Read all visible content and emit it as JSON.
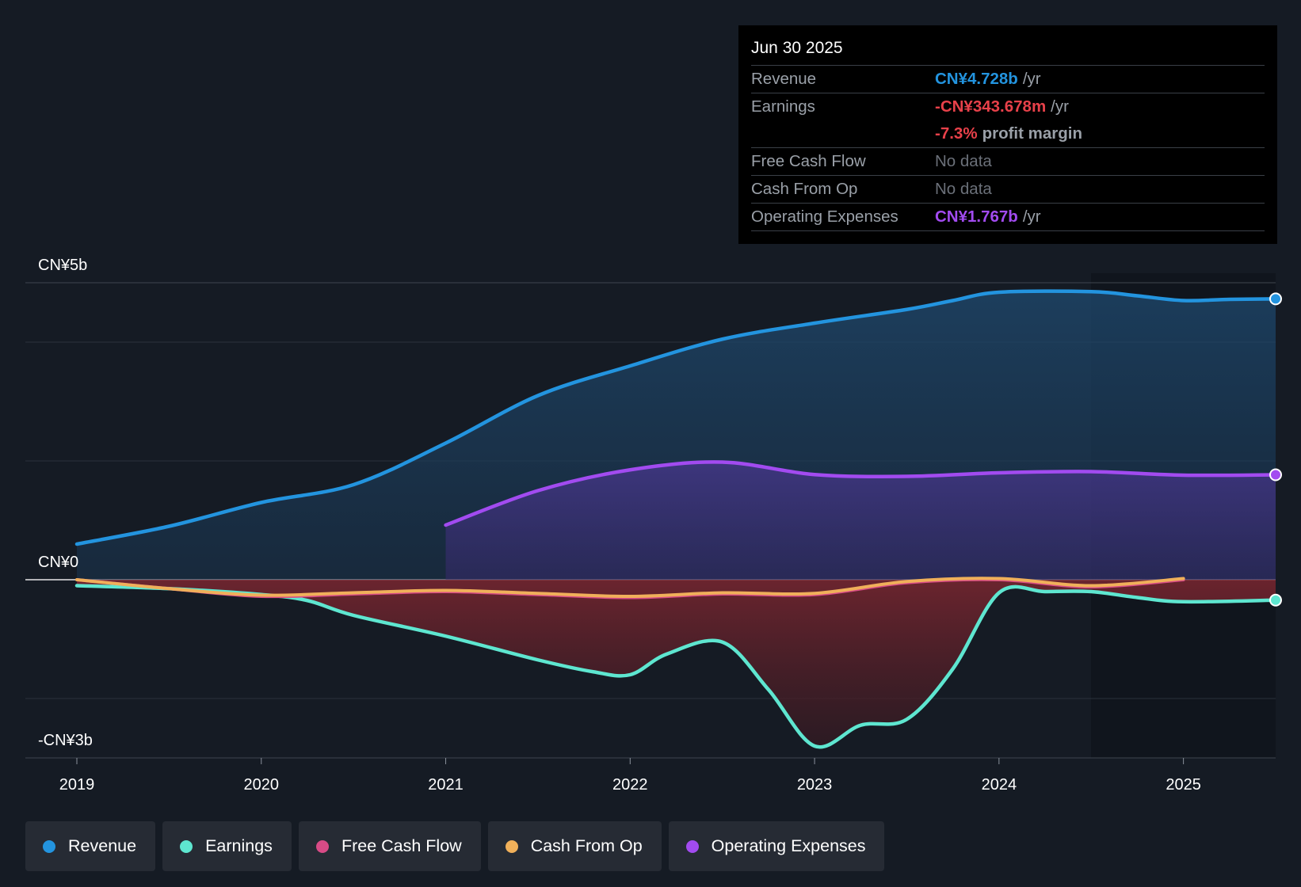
{
  "tooltip": {
    "date": "Jun 30 2025",
    "revenue": {
      "label": "Revenue",
      "value": "CN¥4.728b",
      "unit": "/yr"
    },
    "earnings": {
      "label": "Earnings",
      "value": "-CN¥343.678m",
      "unit": "/yr"
    },
    "margin": {
      "value": "-7.3%",
      "label": "profit margin"
    },
    "fcf": {
      "label": "Free Cash Flow",
      "value": "No data"
    },
    "cfo": {
      "label": "Cash From Op",
      "value": "No data"
    },
    "opex": {
      "label": "Operating Expenses",
      "value": "CN¥1.767b",
      "unit": "/yr"
    }
  },
  "legend": [
    {
      "name": "Revenue",
      "color": "#2394df"
    },
    {
      "name": "Earnings",
      "color": "#5ee6d0"
    },
    {
      "name": "Free Cash Flow",
      "color": "#d84b86"
    },
    {
      "name": "Cash From Op",
      "color": "#f0b05a"
    },
    {
      "name": "Operating Expenses",
      "color": "#a24bf0"
    }
  ],
  "chart_data": {
    "type": "area",
    "y_unit": "CN¥ billions",
    "ylim": [
      -3,
      5
    ],
    "ytick_labels": [
      {
        "value": 5,
        "text": "CN¥5b"
      },
      {
        "value": 0,
        "text": "CN¥0"
      },
      {
        "value": -3,
        "text": "-CN¥3b"
      }
    ],
    "xlim": [
      2019,
      2025.5
    ],
    "xticks": [
      2019,
      2020,
      2021,
      2022,
      2023,
      2024,
      2025
    ],
    "forecast_start": 2024.5,
    "series": [
      {
        "name": "Revenue",
        "color": "#2394df",
        "points": [
          [
            2019,
            0.6
          ],
          [
            2019.5,
            0.9
          ],
          [
            2020,
            1.3
          ],
          [
            2020.5,
            1.6
          ],
          [
            2021,
            2.3
          ],
          [
            2021.5,
            3.1
          ],
          [
            2022,
            3.6
          ],
          [
            2022.5,
            4.05
          ],
          [
            2023,
            4.32
          ],
          [
            2023.5,
            4.55
          ],
          [
            2023.75,
            4.7
          ],
          [
            2024,
            4.84
          ],
          [
            2024.5,
            4.85
          ],
          [
            2024.75,
            4.78
          ],
          [
            2025,
            4.7
          ],
          [
            2025.25,
            4.72
          ],
          [
            2025.5,
            4.728
          ]
        ]
      },
      {
        "name": "Earnings",
        "color": "#5ee6d0",
        "points": [
          [
            2019,
            -0.1
          ],
          [
            2019.5,
            -0.15
          ],
          [
            2020,
            -0.25
          ],
          [
            2020.25,
            -0.35
          ],
          [
            2020.5,
            -0.6
          ],
          [
            2021,
            -0.95
          ],
          [
            2021.5,
            -1.35
          ],
          [
            2021.8,
            -1.55
          ],
          [
            2022,
            -1.6
          ],
          [
            2022.2,
            -1.25
          ],
          [
            2022.5,
            -1.05
          ],
          [
            2022.75,
            -1.85
          ],
          [
            2023,
            -2.8
          ],
          [
            2023.25,
            -2.45
          ],
          [
            2023.5,
            -2.35
          ],
          [
            2023.75,
            -1.5
          ],
          [
            2024,
            -0.22
          ],
          [
            2024.25,
            -0.2
          ],
          [
            2024.5,
            -0.2
          ],
          [
            2024.75,
            -0.3
          ],
          [
            2025,
            -0.37
          ],
          [
            2025.5,
            -0.3437
          ]
        ]
      },
      {
        "name": "Free Cash Flow",
        "color": "#d84b86",
        "points": [
          [
            2019,
            0.0
          ],
          [
            2019.5,
            -0.15
          ],
          [
            2020,
            -0.28
          ],
          [
            2020.5,
            -0.24
          ],
          [
            2021,
            -0.2
          ],
          [
            2021.5,
            -0.25
          ],
          [
            2022,
            -0.3
          ],
          [
            2022.5,
            -0.24
          ],
          [
            2023,
            -0.25
          ],
          [
            2023.5,
            -0.05
          ],
          [
            2024,
            0.0
          ],
          [
            2024.5,
            -0.12
          ],
          [
            2025,
            0.0
          ]
        ]
      },
      {
        "name": "Cash From Op",
        "color": "#f0b05a",
        "points": [
          [
            2019,
            0.0
          ],
          [
            2019.5,
            -0.15
          ],
          [
            2020,
            -0.26
          ],
          [
            2020.5,
            -0.22
          ],
          [
            2021,
            -0.18
          ],
          [
            2021.5,
            -0.23
          ],
          [
            2022,
            -0.28
          ],
          [
            2022.5,
            -0.22
          ],
          [
            2023,
            -0.23
          ],
          [
            2023.5,
            -0.03
          ],
          [
            2024,
            0.02
          ],
          [
            2024.5,
            -0.1
          ],
          [
            2025,
            0.02
          ]
        ]
      },
      {
        "name": "Operating Expenses",
        "color": "#a24bf0",
        "points": [
          [
            2021,
            0.92
          ],
          [
            2021.5,
            1.5
          ],
          [
            2022,
            1.85
          ],
          [
            2022.5,
            1.98
          ],
          [
            2023,
            1.77
          ],
          [
            2023.5,
            1.74
          ],
          [
            2024,
            1.8
          ],
          [
            2024.5,
            1.82
          ],
          [
            2025,
            1.76
          ],
          [
            2025.5,
            1.767
          ]
        ]
      }
    ]
  }
}
